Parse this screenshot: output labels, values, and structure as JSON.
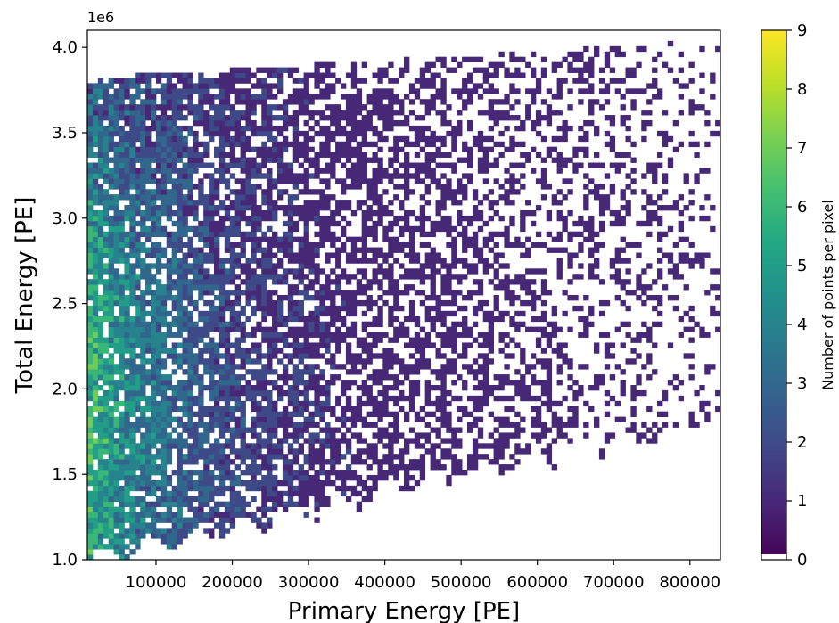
{
  "chart_data": {
    "type": "heatmap",
    "title": "",
    "xlabel": "Primary Energy [PE]",
    "ylabel": "Total Energy [PE]",
    "y_offset_text": "1e6",
    "xlim": [
      10000,
      840000
    ],
    "ylim": [
      1.0,
      4.1
    ],
    "y_multiplier": 1000000,
    "x_ticks": [
      100000,
      200000,
      300000,
      400000,
      500000,
      600000,
      700000,
      800000
    ],
    "x_tick_labels": [
      "100000",
      "200000",
      "300000",
      "400000",
      "500000",
      "600000",
      "700000",
      "800000"
    ],
    "y_ticks": [
      1.0,
      1.5,
      2.0,
      2.5,
      3.0,
      3.5,
      4.0
    ],
    "y_tick_labels": [
      "1.0",
      "1.5",
      "2.0",
      "2.5",
      "3.0",
      "3.5",
      "4.0"
    ],
    "colorbar": {
      "label": "Number of points per pixel",
      "colormap": "viridis",
      "range": [
        0,
        9
      ],
      "ticks": [
        0,
        1,
        2,
        3,
        4,
        5,
        6,
        7,
        8,
        9
      ],
      "tick_labels": [
        "0",
        "1",
        "2",
        "3",
        "4",
        "5",
        "6",
        "7",
        "8",
        "9"
      ],
      "zero_color": "#ffffff"
    },
    "grid": false,
    "bins": {
      "x": 120,
      "y": 100
    },
    "density_description": "Counts are highest (5–9) at low primary energy (below ~150000) across total energy 1.0e6–3.8e6; the lower edge of filled bins rises from ~1.0e6 at x≈10000 to ~1.8e6 at x≈800000, while the upper edge sits near ~3.8e6–4.05e6; counts fall to mostly 1–2 and become sparse toward high primary energy."
  }
}
